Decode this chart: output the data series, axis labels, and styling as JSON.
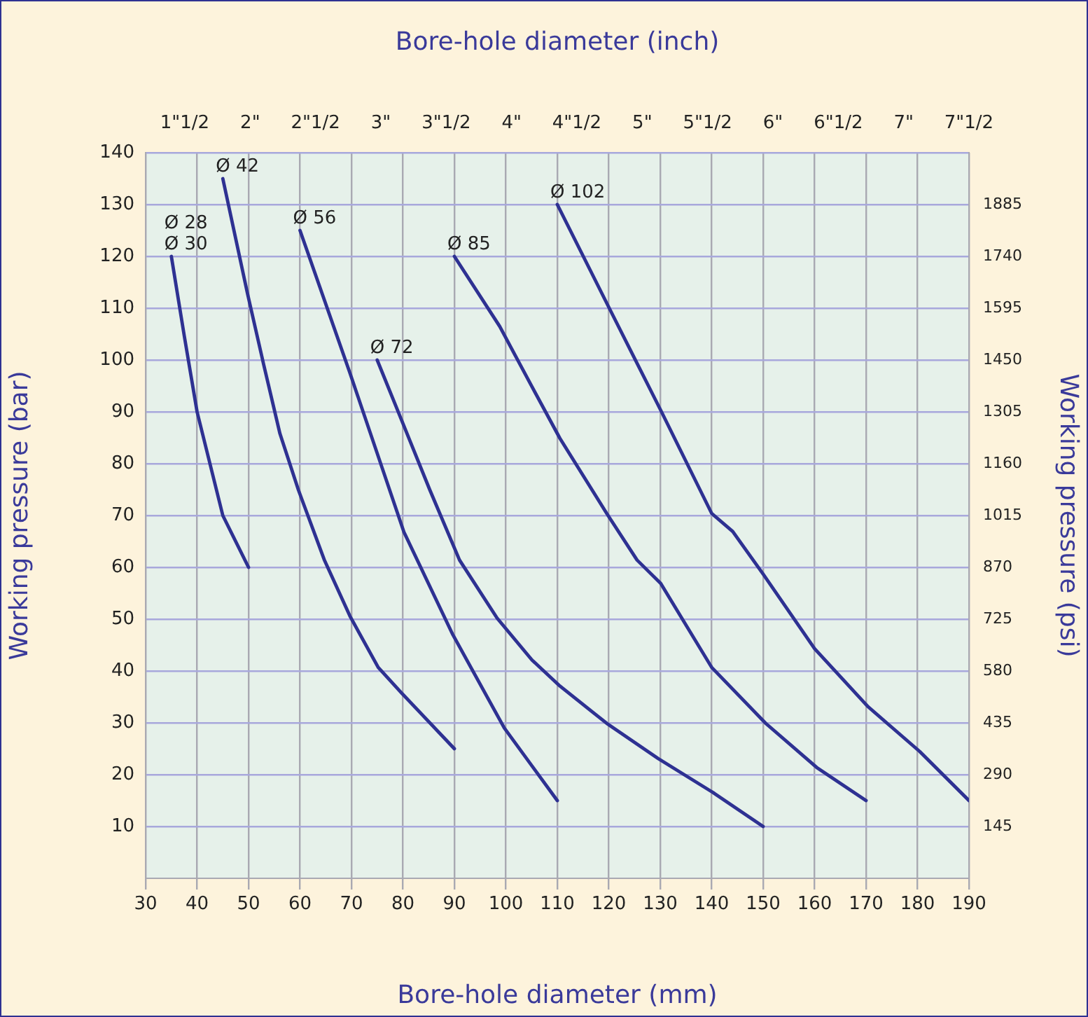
{
  "chart_data": {
    "type": "line",
    "x2label": "Bore-hole diameter (inch)",
    "xlabel": "Bore-hole diameter (mm)",
    "ylabel": "Working pressure (bar)",
    "y2label": "Working pressure (psi)",
    "xlim": [
      30,
      190
    ],
    "xticks": [
      30,
      40,
      50,
      60,
      70,
      80,
      90,
      100,
      110,
      120,
      130,
      140,
      150,
      160,
      170,
      180,
      190
    ],
    "ylim": [
      0,
      140
    ],
    "yticks": [
      10,
      20,
      30,
      40,
      50,
      60,
      70,
      80,
      90,
      100,
      110,
      120,
      130,
      140
    ],
    "y2lim": [
      0,
      2030
    ],
    "y2ticks": [
      145,
      290,
      435,
      580,
      725,
      870,
      1015,
      1160,
      1305,
      1450,
      1595,
      1740,
      1885
    ],
    "x2lim": [
      1.2,
      7.5
    ],
    "x2ticks": [
      {
        "value": 1.5,
        "label": "1\"1/2"
      },
      {
        "value": 2,
        "label": "2\""
      },
      {
        "value": 2.5,
        "label": "2\"1/2"
      },
      {
        "value": 3,
        "label": "3\""
      },
      {
        "value": 3.5,
        "label": "3\"1/2"
      },
      {
        "value": 4,
        "label": "4\""
      },
      {
        "value": 4.5,
        "label": "4\"1/2"
      },
      {
        "value": 5,
        "label": "5\""
      },
      {
        "value": 5.5,
        "label": "5\"1/2"
      },
      {
        "value": 6,
        "label": "6\""
      },
      {
        "value": 6.5,
        "label": "6\"1/2"
      },
      {
        "value": 7,
        "label": "7\""
      },
      {
        "value": 7.5,
        "label": "7\"1/2"
      }
    ],
    "grid": true,
    "legend": false,
    "marker": "none",
    "line_style": "solid",
    "series": [
      {
        "color": "#2e3192",
        "x": [
          35,
          37.5,
          40,
          45,
          50
        ],
        "values": [
          120,
          104.7,
          90,
          70,
          60
        ]
      },
      {
        "color": "#2e3192",
        "x": [
          45,
          49.8,
          52.9,
          56.1,
          59.7,
          64.7,
          69.7,
          75.2,
          79.7,
          90
        ],
        "values": [
          135,
          112.8,
          99.3,
          85.8,
          74.9,
          61.5,
          50.6,
          40.7,
          35.8,
          25
        ]
      },
      {
        "color": "#2e3192",
        "x": [
          60,
          69.7,
          80.2,
          89.7,
          99.7,
          110
        ],
        "values": [
          125,
          97.5,
          66.8,
          47,
          29,
          15
        ]
      },
      {
        "color": "#2e3192",
        "x": [
          75,
          79.7,
          85.2,
          91,
          98.3,
          105.1,
          110.5,
          119.6,
          129.6,
          140.5,
          150
        ],
        "values": [
          100,
          88.5,
          75,
          61.4,
          50.2,
          42.1,
          37.1,
          29.9,
          23.1,
          16.4,
          10
        ]
      },
      {
        "color": "#2e3192",
        "x": [
          90,
          98.8,
          105.1,
          110.5,
          119.6,
          125.5,
          130.1,
          140,
          150.5,
          160.4,
          170
        ],
        "values": [
          120,
          106.5,
          94.8,
          84.9,
          70.4,
          61.4,
          56.9,
          40.7,
          29.9,
          21.4,
          15
        ]
      },
      {
        "color": "#2e3192",
        "x": [
          110,
          120.1,
          130.1,
          140,
          144.1,
          150,
          160,
          170.4,
          180.4,
          190
        ],
        "values": [
          130,
          110,
          90.3,
          70.4,
          66.9,
          58.7,
          44.3,
          33.1,
          24.5,
          15
        ]
      }
    ],
    "annotations": [
      {
        "text": "Ø 28",
        "x": 35,
        "y": 120
      },
      {
        "text": "Ø 30",
        "x": 35,
        "y": 120
      },
      {
        "text": "Ø 42",
        "x": 45,
        "y": 135
      },
      {
        "text": "Ø 56",
        "x": 60,
        "y": 125
      },
      {
        "text": "Ø 72",
        "x": 75,
        "y": 100
      },
      {
        "text": "Ø 85",
        "x": 90,
        "y": 120
      },
      {
        "text": "Ø 102",
        "x": 110,
        "y": 130
      }
    ]
  }
}
